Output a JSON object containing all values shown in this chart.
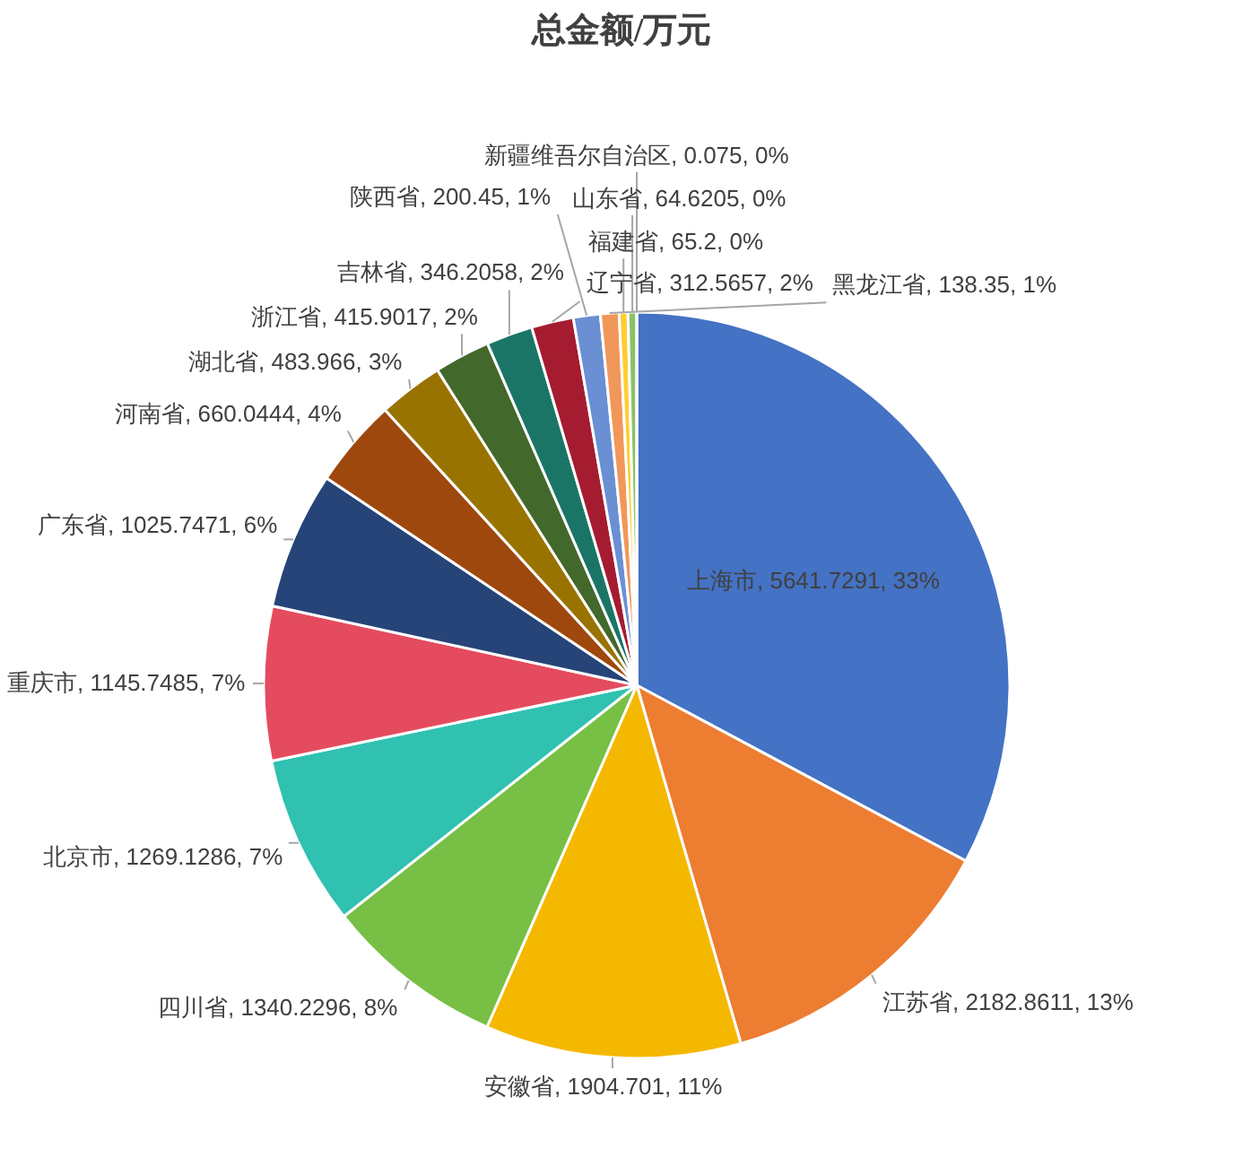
{
  "chart_data": {
    "type": "pie",
    "title": "总金额/万元",
    "categories": [
      "上海市",
      "江苏省",
      "安徽省",
      "四川省",
      "北京市",
      "重庆市",
      "广东省",
      "河南省",
      "湖北省",
      "浙江省",
      "吉林省",
      "辽宁省",
      "陕西省",
      "黑龙江省",
      "福建省",
      "山东省",
      "新疆维吾尔自治区"
    ],
    "values": [
      5641.7291,
      2182.8611,
      1904.701,
      1340.2296,
      1269.1286,
      1145.7485,
      1025.7471,
      660.0444,
      483.966,
      415.9017,
      346.2058,
      312.5657,
      200.45,
      138.35,
      65.2,
      64.6205,
      0.075
    ],
    "colors": [
      "#4472c4",
      "#ed7d31",
      "#f5b800",
      "#78bf45",
      "#30c1b1",
      "#e54b5e",
      "#264478",
      "#9e480e",
      "#997300",
      "#43682b",
      "#1b7567",
      "#a51c30",
      "#6a8fd3",
      "#f1975a",
      "#ffcd33",
      "#8cc168",
      "#6fd6c8"
    ],
    "value_labels": [
      "5641.7291, 33%",
      "2182.8611, 13%",
      "1904.701, 11%",
      "1340.2296, 8%",
      "1269.1286, 7%",
      "1145.7485, 7%",
      "1025.7471, 6%",
      "660.0444, 4%",
      "483.966, 3%",
      "415.9017, 2%",
      "346.2058, 2%",
      "312.5657, 2%",
      "200.45, 1%",
      "138.35, 1%",
      "65.2, 0%",
      "64.6205, 0%",
      "0.075, 0%"
    ]
  }
}
